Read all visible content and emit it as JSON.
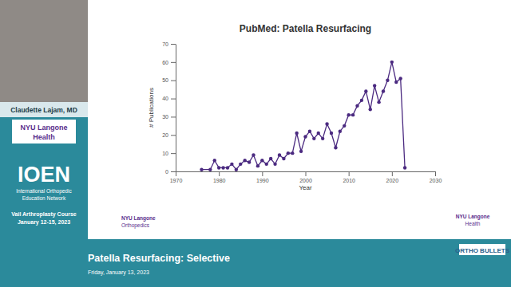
{
  "chart_data": {
    "type": "line",
    "title": "PubMed: Patella Resurfacing",
    "x_label": "Year",
    "y_label": "# Publications",
    "x": [
      1976,
      1978,
      1979,
      1980,
      1981,
      1982,
      1983,
      1984,
      1985,
      1986,
      1987,
      1988,
      1989,
      1990,
      1991,
      1992,
      1993,
      1994,
      1995,
      1996,
      1997,
      1998,
      1999,
      2000,
      2001,
      2002,
      2003,
      2004,
      2005,
      2006,
      2007,
      2008,
      2009,
      2010,
      2011,
      2012,
      2013,
      2014,
      2015,
      2016,
      2017,
      2018,
      2019,
      2020,
      2021,
      2022,
      2023
    ],
    "series": [
      {
        "name": "PubMed: Patella Resurfacing",
        "color": "#4b2a80",
        "marker": "circle",
        "line_style": "solid",
        "values": [
          1,
          1,
          6,
          2,
          2,
          2,
          4,
          1,
          4,
          6,
          5,
          9,
          3,
          6,
          4,
          7,
          4,
          9,
          7,
          10,
          10,
          21,
          11,
          19,
          22,
          18,
          21,
          18,
          26,
          21,
          13,
          22,
          25,
          31,
          31,
          36,
          39,
          44,
          34,
          47,
          38,
          44,
          50,
          60,
          49,
          51,
          2
        ]
      }
    ],
    "xlim": [
      1970,
      2030
    ],
    "xticks": [
      1970,
      1980,
      1990,
      2000,
      2010,
      2020,
      2030
    ],
    "ylim": [
      0,
      70
    ],
    "yticks": [
      0,
      10,
      20,
      30,
      40,
      50,
      60,
      70
    ],
    "grid": false
  },
  "page": {
    "speaker": "Claudette Lajam, MD",
    "logo_left": [
      "NYU Langone",
      "Health"
    ],
    "network_short": "IOEN",
    "network": [
      "International Orthopedic",
      "Education Network"
    ],
    "course": "Vail Arthroplasty Course",
    "course_dates": "January 12-15, 2023",
    "slide_logo_left": [
      "NYU Langone",
      "Orthopedics"
    ],
    "slide_logo_right": [
      "NYU Langone",
      "Health"
    ],
    "talk_title": "Patella Resurfacing: Selective",
    "talk_date": "Friday, January 13, 2023",
    "brand": "ORTHO BULLETS"
  }
}
